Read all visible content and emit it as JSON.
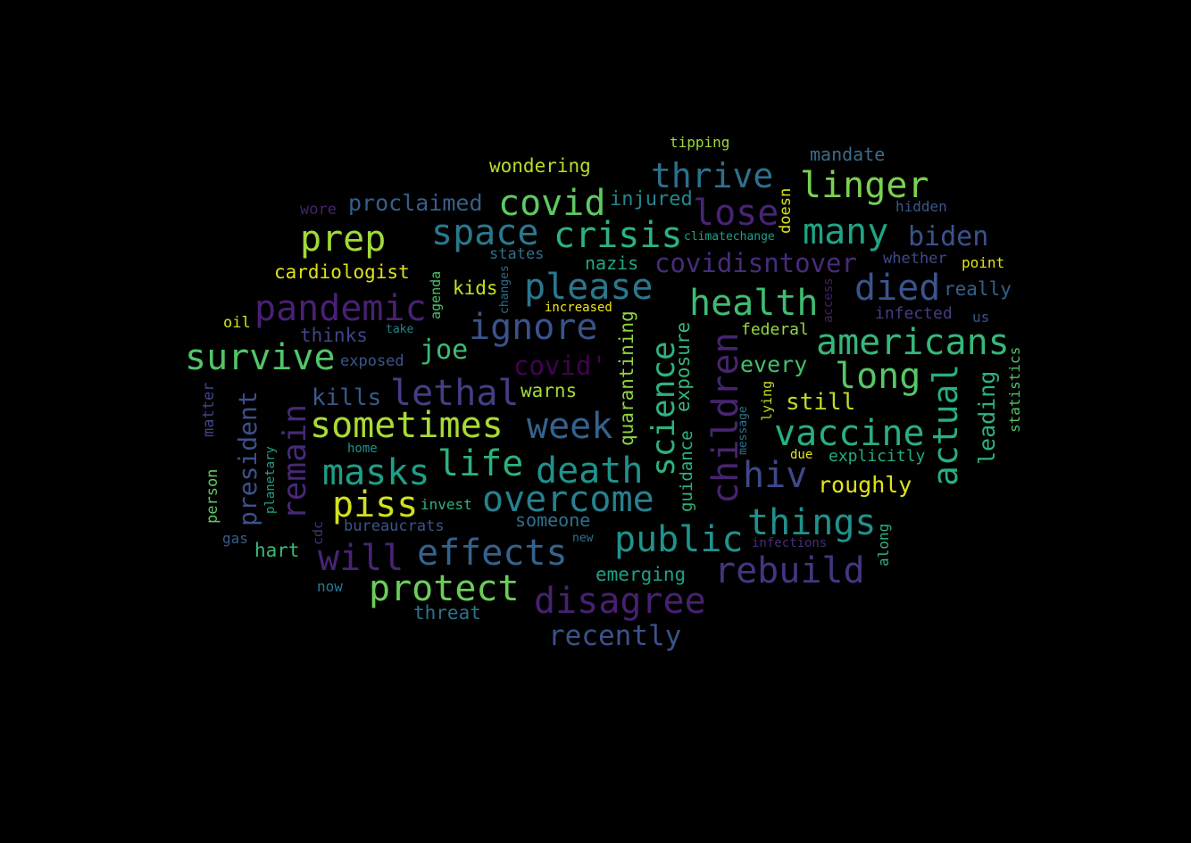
{
  "words": [
    "tipping",
    "mandate",
    "wondering",
    "thrive",
    "linger",
    "wore",
    "proclaimed",
    "covid",
    "injured",
    "lose",
    "doesn",
    "hidden",
    "space",
    "crisis",
    "prep",
    "many",
    "climatechange",
    "biden",
    "states",
    "whether",
    "cardiologist",
    "nazis",
    "covidisntover",
    "point",
    "kids",
    "please",
    "changes",
    "agenda",
    "died",
    "really",
    "increased",
    "health",
    "pandemic",
    "access",
    "infected",
    "us",
    "oil",
    "ignore",
    "take",
    "thinks",
    "quarantining",
    "federal",
    "americans",
    "survive",
    "joe",
    "every",
    "exposed",
    "covid'",
    "science",
    "exposure",
    "children",
    "long",
    "actual",
    "statistics",
    "leading",
    "lethal",
    "kills",
    "warns",
    "lying",
    "still",
    "matter",
    "sometimes",
    "week",
    "message",
    "vaccine",
    "president",
    "remain",
    "home",
    "due",
    "explicitly",
    "planetary",
    "masks",
    "life",
    "death",
    "hiv",
    "guidance",
    "roughly",
    "person",
    "piss",
    "overcome",
    "invest",
    "things",
    "someone",
    "cdc",
    "bureaucrats",
    "along",
    "gas",
    "public",
    "new",
    "infections",
    "hart",
    "will",
    "effects",
    "rebuild",
    "emerging",
    "now",
    "protect",
    "disagree",
    "threat",
    "recently"
  ],
  "colors": {
    "background": "#000000",
    "palette": [
      "#440154",
      "#472d7b",
      "#3b528b",
      "#2c728e",
      "#21918c",
      "#28ae80",
      "#5ec962",
      "#addc30",
      "#fde725"
    ]
  }
}
